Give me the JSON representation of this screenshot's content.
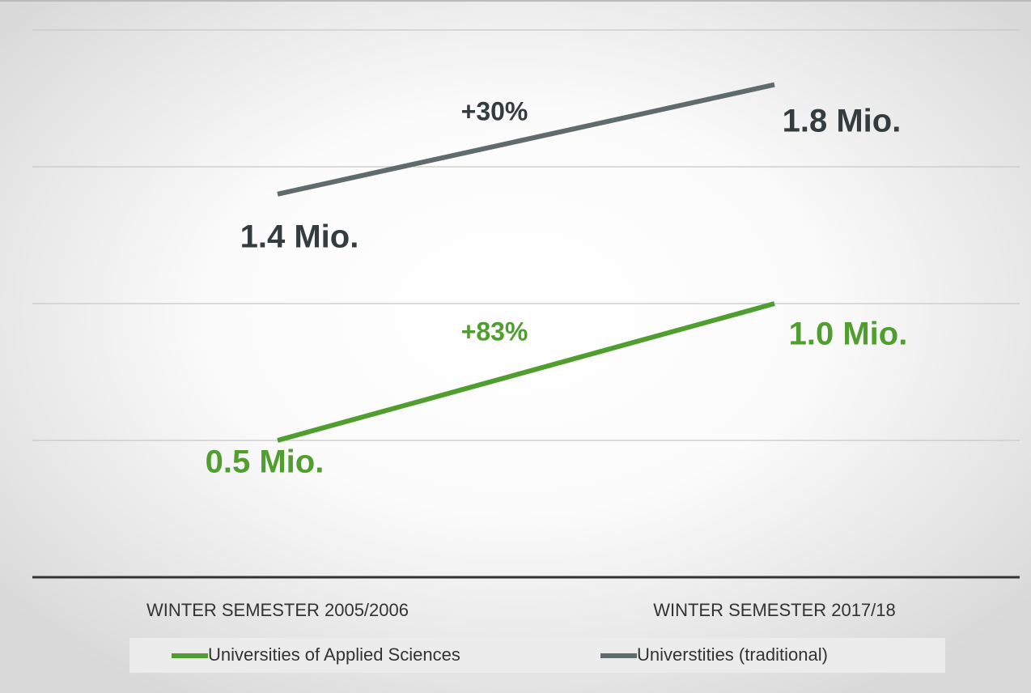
{
  "chart_data": {
    "type": "line",
    "categories": [
      "WINTER SEMESTER 2005/2006",
      "WINTER SEMESTER 2017/18"
    ],
    "series": [
      {
        "name": "Universities of Applied Sciences",
        "color": "#509e2f",
        "values": [
          0.5,
          1.0
        ],
        "value_labels": [
          "0.5 Mio.",
          "1.0 Mio."
        ]
      },
      {
        "name": "Universtities (traditional)",
        "color": "#5f6b6d",
        "values": [
          1.4,
          1.8
        ],
        "value_labels": [
          "1.4 Mio.",
          "1.8 Mio."
        ]
      }
    ],
    "annotations": [
      "+83%",
      "+30%"
    ],
    "ylim": [
      0,
      2
    ],
    "yticks": [
      0,
      0.5,
      1,
      1.5,
      2
    ],
    "show_ytick_labels": false,
    "grid": true,
    "legend": "bottom"
  }
}
